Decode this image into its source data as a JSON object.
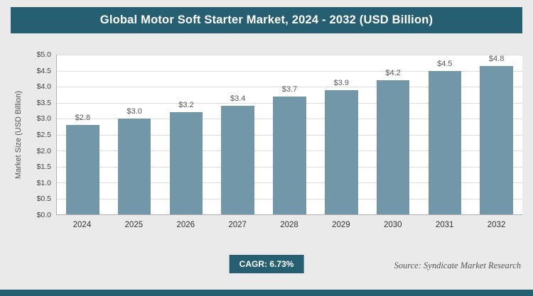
{
  "chart_data": {
    "type": "bar",
    "title": "Global Motor Soft Starter Market, 2024 - 2032 (USD Billion)",
    "categories": [
      "2024",
      "2025",
      "2026",
      "2027",
      "2028",
      "2029",
      "2030",
      "2031",
      "2032"
    ],
    "values": [
      2.8,
      3.0,
      3.2,
      3.4,
      3.7,
      3.9,
      4.2,
      4.5,
      4.8
    ],
    "value_labels": [
      "$2.8",
      "$3.0",
      "$3.2",
      "$3.4",
      "$3.7",
      "$3.9",
      "$4.2",
      "$4.5",
      "$4.8"
    ],
    "xlabel": "",
    "ylabel": "Market Size (USD Billion)",
    "ylim": [
      0,
      5.0
    ],
    "ytick_step": 0.5,
    "ytick_labels": [
      "$0.0",
      "$0.5",
      "$1.0",
      "$1.5",
      "$2.0",
      "$2.5",
      "$3.0",
      "$3.5",
      "$4.0",
      "$4.5",
      "$5.0"
    ],
    "grid": true,
    "legend": false,
    "bar_color": "#7197a8"
  },
  "footer": {
    "cagr_label": "CAGR: 6.73%",
    "source": "Source: Syndicate Market Research"
  },
  "colors": {
    "accent": "#275f72",
    "bar": "#7197a8",
    "background": "#eaeaea",
    "plot_background": "#ffffff",
    "gridline": "#dcdcdc"
  }
}
